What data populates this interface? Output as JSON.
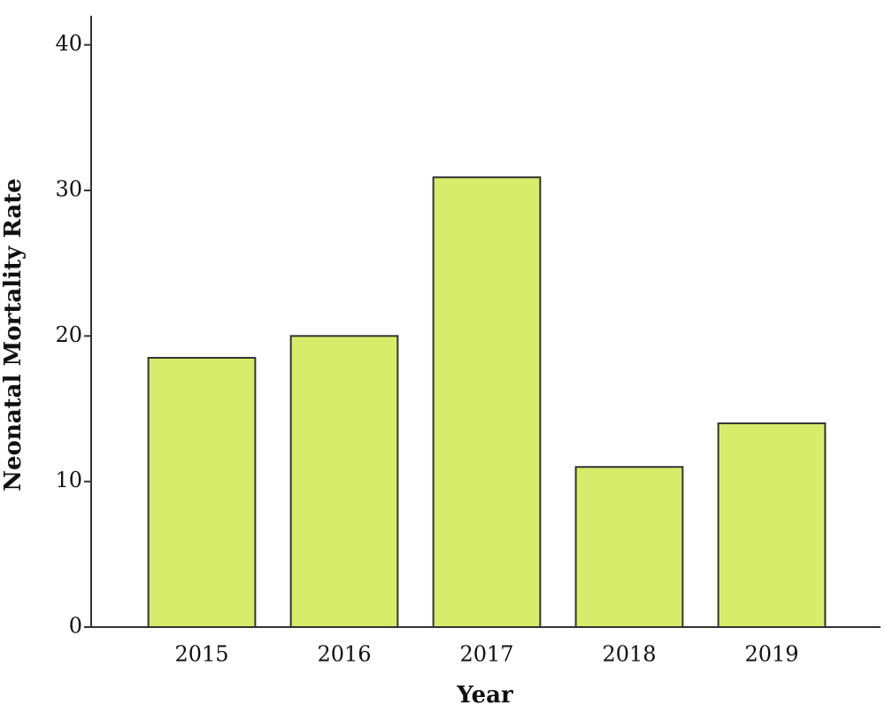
{
  "chart_data": {
    "type": "bar",
    "x_label": "Year",
    "y_label": "Neonatal Mortality Rate",
    "categories": [
      "2015",
      "2016",
      "2017",
      "2018",
      "2019"
    ],
    "values": [
      18.5,
      20,
      30.9,
      11,
      14
    ],
    "color": "#d7ec6a",
    "ylim": [
      0,
      42
    ],
    "yticks": [
      0,
      10,
      20,
      30,
      40
    ],
    "grid": false
  }
}
